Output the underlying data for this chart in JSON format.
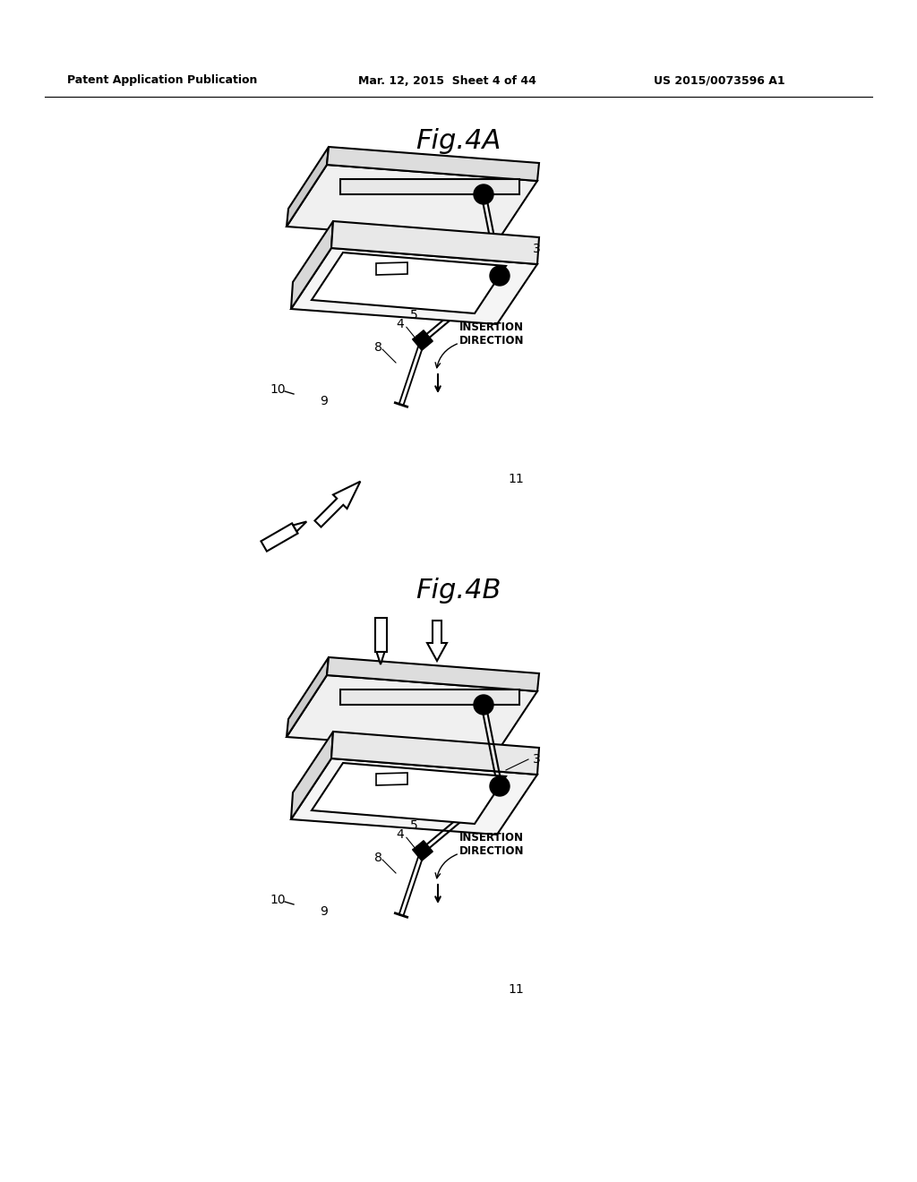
{
  "background_color": "#ffffff",
  "header_left": "Patent Application Publication",
  "header_mid": "Mar. 12, 2015  Sheet 4 of 44",
  "header_right": "US 2015/0073596 A1",
  "fig4a_title": "Fig.4A",
  "fig4b_title": "Fig.4B",
  "line_color": "#000000"
}
